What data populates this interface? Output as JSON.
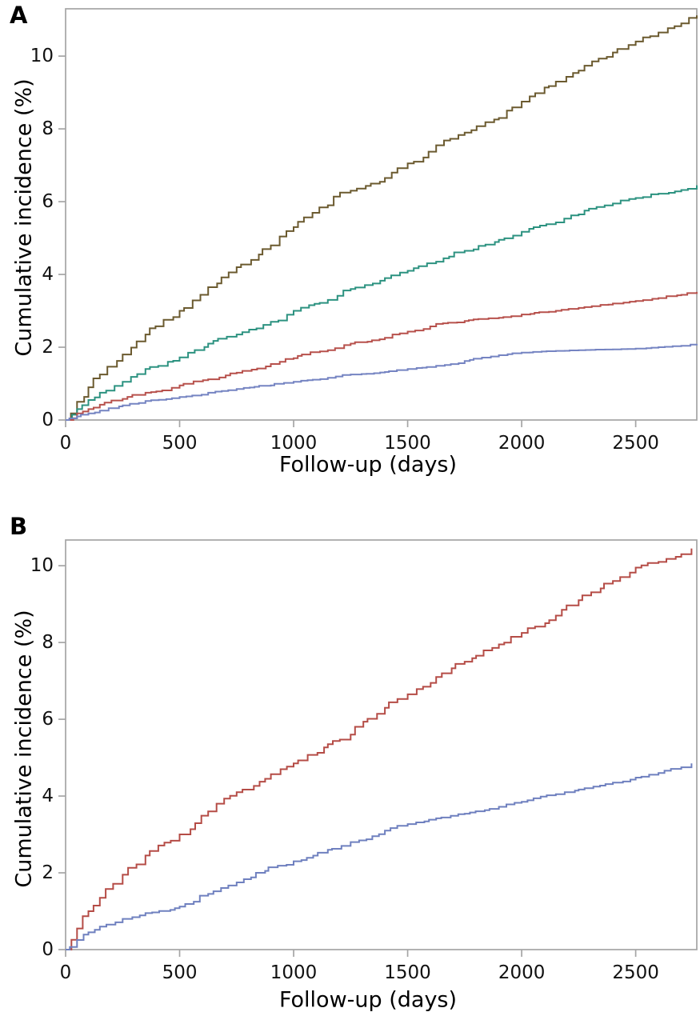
{
  "figure": {
    "background": "#ffffff",
    "axis_color": "#a5a5a5",
    "text_color": "#111111"
  },
  "chart_data": [
    {
      "panel_letter": "A",
      "type": "line",
      "line_style": "step",
      "title": "",
      "xlabel": "Follow-up (days)",
      "ylabel": "Cumulative incidence (%)",
      "xlim": [
        0,
        2768
      ],
      "ylim": [
        0,
        11.3
      ],
      "x_ticks": [
        0,
        500,
        1000,
        1500,
        2000,
        2500
      ],
      "y_ticks": [
        0,
        2,
        4,
        6,
        8,
        10
      ],
      "grid": false,
      "legend": "none",
      "x": [
        0,
        50,
        100,
        150,
        250,
        350,
        500,
        625,
        750,
        900,
        1000,
        1150,
        1250,
        1400,
        1500,
        1625,
        1750,
        1900,
        2000,
        2150,
        2250,
        2400,
        2500,
        2600,
        2700,
        2768
      ],
      "series": [
        {
          "name": "series-olive-brown",
          "color": "#6b5a2f",
          "values": [
            0,
            0.5,
            0.9,
            1.25,
            1.8,
            2.35,
            3.0,
            3.65,
            4.2,
            4.8,
            5.3,
            5.9,
            6.3,
            6.65,
            7.05,
            7.55,
            7.9,
            8.3,
            8.75,
            9.3,
            9.6,
            10.1,
            10.4,
            10.65,
            10.9,
            11.12
          ]
        },
        {
          "name": "series-teal",
          "color": "#2c9280",
          "values": [
            0,
            0.3,
            0.55,
            0.75,
            1.05,
            1.4,
            1.72,
            2.1,
            2.35,
            2.7,
            3.0,
            3.3,
            3.6,
            3.9,
            4.1,
            4.35,
            4.65,
            4.95,
            5.17,
            5.43,
            5.65,
            5.95,
            6.1,
            6.22,
            6.32,
            6.45
          ]
        },
        {
          "name": "series-red",
          "color": "#b7514c",
          "values": [
            0,
            0.18,
            0.3,
            0.42,
            0.58,
            0.75,
            0.95,
            1.12,
            1.3,
            1.54,
            1.7,
            1.92,
            2.1,
            2.26,
            2.43,
            2.64,
            2.72,
            2.81,
            2.9,
            3.0,
            3.08,
            3.2,
            3.27,
            3.35,
            3.44,
            3.52
          ]
        },
        {
          "name": "series-blue",
          "color": "#7584c2",
          "values": [
            0,
            0.1,
            0.18,
            0.26,
            0.4,
            0.52,
            0.63,
            0.75,
            0.85,
            0.95,
            1.05,
            1.16,
            1.25,
            1.32,
            1.4,
            1.49,
            1.62,
            1.78,
            1.85,
            1.9,
            1.92,
            1.94,
            1.96,
            2.0,
            2.04,
            2.09
          ]
        }
      ]
    },
    {
      "panel_letter": "B",
      "type": "line",
      "line_style": "step",
      "title": "",
      "xlabel": "Follow-up (days)",
      "ylabel": "Cumulative incidence (%)",
      "xlim": [
        0,
        2768
      ],
      "ylim": [
        0,
        10.67
      ],
      "x_ticks": [
        0,
        500,
        1000,
        1500,
        2000,
        2500
      ],
      "y_ticks": [
        0,
        2,
        4,
        6,
        8,
        10
      ],
      "grid": false,
      "legend": "none",
      "x": [
        0,
        50,
        100,
        150,
        250,
        350,
        500,
        625,
        750,
        875,
        1000,
        1150,
        1250,
        1400,
        1500,
        1625,
        1750,
        1900,
        2000,
        2150,
        2250,
        2400,
        2500,
        2600,
        2700,
        2745
      ],
      "series": [
        {
          "name": "series-red",
          "color": "#b54c46",
          "values": [
            0,
            0.55,
            1.0,
            1.35,
            1.95,
            2.45,
            3.0,
            3.6,
            4.1,
            4.45,
            4.85,
            5.35,
            5.6,
            6.3,
            6.65,
            7.1,
            7.5,
            7.95,
            8.25,
            8.7,
            9.1,
            9.6,
            9.95,
            10.1,
            10.3,
            10.45
          ]
        },
        {
          "name": "series-blue",
          "color": "#6f80bf",
          "values": [
            0,
            0.25,
            0.45,
            0.6,
            0.8,
            0.95,
            1.12,
            1.45,
            1.75,
            2.05,
            2.3,
            2.6,
            2.8,
            3.1,
            3.27,
            3.42,
            3.54,
            3.72,
            3.85,
            4.05,
            4.17,
            4.35,
            4.48,
            4.6,
            4.75,
            4.85
          ]
        }
      ]
    }
  ]
}
